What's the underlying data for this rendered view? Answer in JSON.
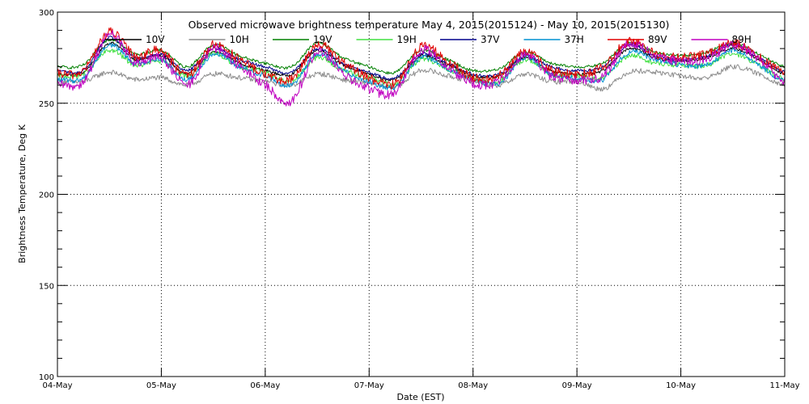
{
  "chart_data": {
    "type": "line",
    "title": "Observed microwave brightness temperature May  4, 2015(2015124) - May 10, 2015(2015130)",
    "xlabel": "Date (EST)",
    "ylabel": "Brightness Temperature, Deg K",
    "ylim": [
      100,
      300
    ],
    "yticks": [
      100,
      150,
      200,
      250,
      300
    ],
    "xlim": [
      "2015-05-04",
      "2015-05-11"
    ],
    "xticks": [
      "04-May",
      "05-May",
      "06-May",
      "07-May",
      "08-May",
      "09-May",
      "10-May",
      "11-May"
    ],
    "grid": true,
    "legend_position": "top",
    "x": [
      "2015-05-04 00:00",
      "2015-05-04 06:00",
      "2015-05-04 12:00",
      "2015-05-04 18:00",
      "2015-05-05 00:00",
      "2015-05-05 06:00",
      "2015-05-05 12:00",
      "2015-05-05 18:00",
      "2015-05-06 00:00",
      "2015-05-06 06:00",
      "2015-05-06 12:00",
      "2015-05-06 18:00",
      "2015-05-07 00:00",
      "2015-05-07 06:00",
      "2015-05-07 12:00",
      "2015-05-07 18:00",
      "2015-05-08 00:00",
      "2015-05-08 06:00",
      "2015-05-08 12:00",
      "2015-05-08 18:00",
      "2015-05-09 00:00",
      "2015-05-09 06:00",
      "2015-05-09 12:00",
      "2015-05-09 18:00",
      "2015-05-10 00:00",
      "2015-05-10 06:00",
      "2015-05-10 12:00",
      "2015-05-10 18:00",
      "2015-05-11 00:00"
    ],
    "series": [
      {
        "name": "10V",
        "color": "#000000",
        "values": [
          266,
          267,
          283,
          274,
          276,
          266,
          278,
          272,
          268,
          266,
          279,
          271,
          266,
          263,
          276,
          271,
          265,
          265,
          275,
          268,
          266,
          268,
          280,
          275,
          273,
          275,
          280,
          274,
          266
        ]
      },
      {
        "name": "10H",
        "color": "#8c8c8c",
        "values": [
          262,
          262,
          267,
          263,
          264,
          260,
          266,
          264,
          262,
          260,
          266,
          263,
          261,
          259,
          268,
          265,
          262,
          260,
          266,
          262,
          262,
          258,
          267,
          267,
          265,
          264,
          270,
          266,
          260
        ]
      },
      {
        "name": "19V",
        "color": "#008000",
        "values": [
          270,
          271,
          285,
          277,
          279,
          270,
          282,
          276,
          272,
          270,
          283,
          275,
          270,
          267,
          279,
          274,
          268,
          269,
          278,
          272,
          270,
          272,
          283,
          278,
          276,
          278,
          283,
          277,
          270
        ]
      },
      {
        "name": "19H",
        "color": "#40e040",
        "values": [
          265,
          266,
          279,
          271,
          273,
          265,
          277,
          270,
          267,
          262,
          275,
          268,
          264,
          261,
          274,
          269,
          264,
          262,
          274,
          266,
          265,
          264,
          276,
          272,
          271,
          271,
          277,
          271,
          263
        ]
      },
      {
        "name": "37V",
        "color": "#00008b",
        "values": [
          268,
          268,
          286,
          275,
          277,
          268,
          280,
          274,
          270,
          267,
          280,
          272,
          267,
          264,
          277,
          272,
          266,
          266,
          276,
          270,
          268,
          270,
          282,
          276,
          274,
          276,
          282,
          275,
          267
        ]
      },
      {
        "name": "37H",
        "color": "#0090d0",
        "values": [
          263,
          264,
          282,
          272,
          274,
          263,
          277,
          270,
          265,
          260,
          277,
          268,
          262,
          259,
          275,
          269,
          263,
          261,
          275,
          266,
          264,
          263,
          278,
          274,
          271,
          271,
          279,
          271,
          262
        ]
      },
      {
        "name": "89V",
        "color": "#e00000",
        "values": [
          266,
          268,
          289,
          276,
          279,
          265,
          282,
          274,
          266,
          263,
          282,
          272,
          264,
          261,
          281,
          273,
          264,
          265,
          278,
          268,
          266,
          270,
          284,
          277,
          275,
          277,
          283,
          276,
          266
        ]
      },
      {
        "name": "89H",
        "color": "#c000c0",
        "values": [
          260,
          262,
          288,
          272,
          275,
          260,
          280,
          270,
          260,
          251,
          278,
          266,
          258,
          256,
          279,
          270,
          261,
          262,
          277,
          265,
          263,
          265,
          283,
          276,
          273,
          274,
          282,
          274,
          262
        ]
      }
    ]
  }
}
